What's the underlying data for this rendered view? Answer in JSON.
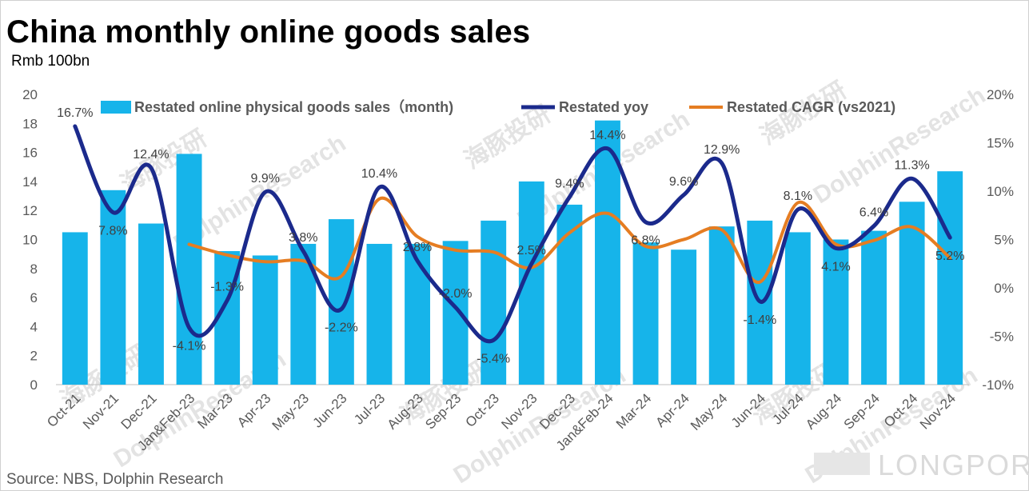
{
  "header": {
    "title": "China monthly online goods sales",
    "unit": "Rmb 100bn"
  },
  "footer": {
    "source": "Source: NBS, Dolphin Research"
  },
  "watermarks": {
    "brand": "DolphinResearch",
    "brand_cn": "海豚投研",
    "logo": "LONGPORT"
  },
  "chart_data": {
    "type": "bar",
    "categories": [
      "Oct-21",
      "Nov-21",
      "Dec-21",
      "Jan&Feb-23",
      "Mar-23",
      "Apr-23",
      "May-23",
      "Jun-23",
      "Jul-23",
      "Aug-23",
      "Sep-23",
      "Oct-23",
      "Nov-23",
      "Dec-23",
      "Jan&Feb-24",
      "Mar-24",
      "Apr-24",
      "May-24",
      "Jun-24",
      "Jul-24",
      "Aug-24",
      "Sep-24",
      "Oct-24",
      "Nov-24"
    ],
    "y_left": {
      "min": 0,
      "max": 20,
      "step": 2,
      "ticks": [
        "0",
        "2",
        "4",
        "6",
        "8",
        "10",
        "12",
        "14",
        "16",
        "18",
        "20"
      ]
    },
    "y_right": {
      "min": -10,
      "max": 20,
      "step": 5,
      "ticks": [
        "-10%",
        "-5%",
        "0%",
        "5%",
        "10%",
        "15%",
        "20%"
      ]
    },
    "legend": {
      "placement": "top"
    },
    "grid": false,
    "series": [
      {
        "name": "Restated online physical goods sales（month)",
        "kind": "bar",
        "axis": "left",
        "color": "#16b4ea",
        "values": [
          10.5,
          13.4,
          11.1,
          15.9,
          9.2,
          8.9,
          9.7,
          11.4,
          9.7,
          9.7,
          9.9,
          11.3,
          14.0,
          12.4,
          18.2,
          9.8,
          9.3,
          10.9,
          11.3,
          10.5,
          10.0,
          10.6,
          12.6,
          14.7
        ]
      },
      {
        "name": "Restated yoy",
        "kind": "line",
        "axis": "right",
        "color": "#1b2a8c",
        "values": [
          16.7,
          7.8,
          12.4,
          -4.1,
          -1.3,
          9.9,
          3.8,
          -2.2,
          10.4,
          2.8,
          -2.0,
          -5.4,
          2.5,
          9.4,
          14.4,
          6.8,
          9.6,
          12.9,
          -1.4,
          8.1,
          4.1,
          6.4,
          11.3,
          5.2
        ],
        "labels": [
          "16.7%",
          "7.8%",
          "12.4%",
          "-4.1%",
          "-1.3%",
          "9.9%",
          "3.8%",
          "-2.2%",
          "10.4%",
          "2.8%",
          "-2.0%",
          "-5.4%",
          "2.5%",
          "9.4%",
          "14.4%",
          "6.8%",
          "9.6%",
          "12.9%",
          "-1.4%",
          "8.1%",
          "4.1%",
          "6.4%",
          "11.3%",
          "5.2%"
        ]
      },
      {
        "name": "Restated CAGR (vs2021)",
        "kind": "line",
        "axis": "right",
        "color": "#e57d22",
        "start_index": 3,
        "values": [
          null,
          null,
          null,
          4.5,
          3.4,
          2.7,
          2.8,
          1.2,
          9.2,
          5.3,
          3.9,
          3.7,
          2.1,
          5.7,
          7.7,
          4.3,
          5.0,
          6.0,
          0.6,
          8.8,
          4.5,
          4.9,
          6.3,
          3.1
        ]
      }
    ]
  }
}
